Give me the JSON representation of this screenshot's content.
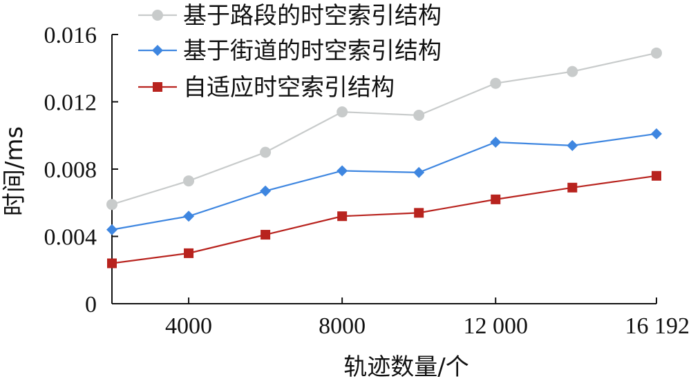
{
  "chart_data": {
    "type": "line",
    "x": [
      2000,
      4000,
      6000,
      8000,
      10000,
      12000,
      14000,
      16192
    ],
    "xlim": [
      2000,
      16192
    ],
    "x_ticks": [
      4000,
      8000,
      12000,
      16192
    ],
    "x_tick_labels": [
      "4000",
      "8000",
      "12 000",
      "16 192"
    ],
    "ylim": [
      0,
      0.016
    ],
    "y_ticks": [
      0,
      0.004,
      0.008,
      0.012,
      0.016
    ],
    "y_tick_labels": [
      "0",
      "0.004",
      "0.008",
      "0.012",
      "0.016"
    ],
    "xlabel": "轨迹数量/个",
    "ylabel": "时间/ms",
    "grid": false,
    "legend_position": "top-left",
    "series": [
      {
        "name": "基于路段的时空索引结构",
        "color": "#c8cbcb",
        "marker": "circle",
        "values": [
          0.0059,
          0.0073,
          0.009,
          0.0114,
          0.0112,
          0.0131,
          0.0138,
          0.0149
        ]
      },
      {
        "name": "基于街道的时空索引结构",
        "color": "#3e86e0",
        "marker": "diamond",
        "values": [
          0.0044,
          0.0052,
          0.0067,
          0.0079,
          0.0078,
          0.0096,
          0.0094,
          0.0101
        ]
      },
      {
        "name": "自适应时空索引结构",
        "color": "#b8231e",
        "marker": "square",
        "values": [
          0.0024,
          0.003,
          0.0041,
          0.0052,
          0.0054,
          0.0062,
          0.0069,
          0.0076
        ]
      }
    ]
  }
}
